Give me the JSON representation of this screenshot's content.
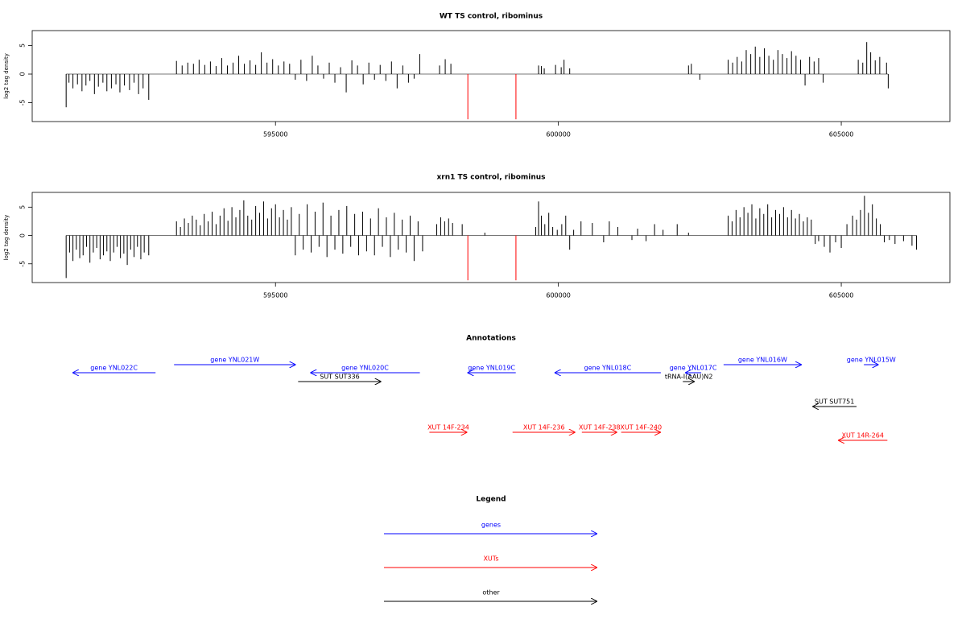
{
  "chart_data": [
    {
      "type": "bar",
      "title": "WT TS control, ribominus",
      "ylabel": "log2 tag density",
      "xlim": [
        590700,
        606920
      ],
      "ylim": [
        -8.3,
        7.6
      ],
      "xticks": [
        595000,
        600000,
        605000
      ],
      "yticks": [
        -5,
        0,
        5
      ],
      "series": [
        {
          "color": "#000000",
          "x": [
            591300,
            591350,
            591420,
            591500,
            591580,
            591650,
            591720,
            591800,
            591870,
            591950,
            592020,
            592100,
            592180,
            592250,
            592330,
            592420,
            592500,
            592580,
            592660,
            592760,
            593250,
            593350,
            593450,
            593550,
            593650,
            593750,
            593850,
            593950,
            594050,
            594150,
            594250,
            594350,
            594450,
            594550,
            594650,
            594750,
            594850,
            594950,
            595050,
            595150,
            595250,
            595350,
            595450,
            595550,
            595650,
            595750,
            595850,
            595950,
            596050,
            596150,
            596250,
            596350,
            596450,
            596550,
            596650,
            596750,
            596850,
            596950,
            597050,
            597150,
            597250,
            597350,
            597450,
            597550,
            597900,
            598000,
            598100,
            599650,
            599700,
            599750,
            599950,
            600050,
            600100,
            600200,
            602300,
            602350,
            602500,
            603000,
            603080,
            603160,
            603240,
            603320,
            603400,
            603480,
            603560,
            603640,
            603720,
            603800,
            603880,
            603960,
            604040,
            604120,
            604200,
            604280,
            604360,
            604440,
            604520,
            604600,
            604680,
            605300,
            605380,
            605450,
            605520,
            605600,
            605680,
            605800,
            605830
          ],
          "values": [
            -5.8,
            -1.5,
            -2.5,
            -1.8,
            -3,
            -2,
            -1.2,
            -3.5,
            -2.2,
            -1.5,
            -3,
            -2.5,
            -1.8,
            -3.2,
            -2,
            -2.8,
            -1.5,
            -3.5,
            -2.5,
            -4.5,
            2.3,
            1.5,
            2,
            1.8,
            2.5,
            1.6,
            2.2,
            1.4,
            2.8,
            1.5,
            2,
            3.2,
            1.8,
            2.4,
            1.6,
            3.8,
            2,
            2.6,
            1.5,
            2.2,
            1.8,
            -1,
            2.5,
            -1.2,
            3.2,
            1.5,
            -0.8,
            2,
            -1.5,
            1.2,
            -3.2,
            2.4,
            1.5,
            -1.8,
            2,
            -1,
            1.6,
            -1.2,
            2.2,
            -2.5,
            1.5,
            -1.5,
            -0.8,
            3.5,
            1.5,
            2.6,
            1.8,
            1.5,
            1.4,
            1,
            1.6,
            1.2,
            2.5,
            1,
            1.5,
            1.8,
            -1,
            2.5,
            2,
            3,
            2.2,
            4.2,
            3.5,
            4.8,
            3,
            4.5,
            3.2,
            2.5,
            4.2,
            3.5,
            2.8,
            4,
            3.2,
            2.5,
            -2,
            3,
            2.2,
            2.8,
            -1.5,
            2.5,
            2,
            5.6,
            3.8,
            2.4,
            3,
            2,
            -2.5
          ]
        },
        {
          "color": "#ff0000",
          "x": [
            598400,
            599250
          ],
          "values": [
            -7.9,
            -7.9
          ]
        }
      ]
    },
    {
      "type": "bar",
      "title": "xrn1 TS control, ribominus",
      "ylabel": "log2 tag density",
      "xlim": [
        590700,
        606920
      ],
      "ylim": [
        -8.3,
        7.6
      ],
      "xticks": [
        595000,
        600000,
        605000
      ],
      "yticks": [
        -5,
        0,
        5
      ],
      "series": [
        {
          "color": "#000000",
          "x": [
            591300,
            591360,
            591420,
            591480,
            591540,
            591600,
            591660,
            591720,
            591780,
            591840,
            591900,
            591960,
            592020,
            592080,
            592140,
            592200,
            592260,
            592320,
            592380,
            592440,
            592500,
            592560,
            592620,
            592680,
            592760,
            593250,
            593320,
            593390,
            593460,
            593530,
            593600,
            593670,
            593740,
            593810,
            593880,
            593950,
            594020,
            594090,
            594160,
            594230,
            594300,
            594370,
            594440,
            594510,
            594580,
            594650,
            594720,
            594790,
            594860,
            594930,
            595000,
            595070,
            595140,
            595210,
            595280,
            595350,
            595420,
            595490,
            595560,
            595630,
            595700,
            595770,
            595840,
            595910,
            595980,
            596050,
            596120,
            596190,
            596260,
            596330,
            596400,
            596470,
            596540,
            596610,
            596680,
            596750,
            596820,
            596890,
            596960,
            597030,
            597100,
            597170,
            597240,
            597310,
            597380,
            597450,
            597520,
            597600,
            597850,
            597920,
            597990,
            598060,
            598130,
            598300,
            598700,
            599600,
            599650,
            599700,
            599760,
            599830,
            599900,
            599980,
            600060,
            600130,
            600200,
            600270,
            600400,
            600600,
            600800,
            600900,
            601050,
            601300,
            601400,
            601550,
            601700,
            601850,
            602100,
            602300,
            603000,
            603070,
            603140,
            603210,
            603280,
            603350,
            603420,
            603490,
            603560,
            603630,
            603700,
            603770,
            603840,
            603910,
            603980,
            604050,
            604120,
            604190,
            604260,
            604330,
            604400,
            604470,
            604540,
            604600,
            604700,
            604800,
            604900,
            605000,
            605100,
            605200,
            605270,
            605340,
            605410,
            605480,
            605550,
            605620,
            605690,
            605760,
            605850,
            605950,
            606100,
            606250,
            606330
          ],
          "values": [
            -7.5,
            -3,
            -4.5,
            -2.5,
            -4,
            -3.5,
            -2,
            -4.8,
            -3,
            -2.2,
            -4.2,
            -3.5,
            -2.8,
            -4.5,
            -3,
            -2,
            -4,
            -3.2,
            -5.2,
            -2.5,
            -3.8,
            -2,
            -4.2,
            -3,
            -3.5,
            2.5,
            1.5,
            3,
            2.2,
            3.5,
            2.8,
            1.8,
            3.8,
            2.5,
            4.2,
            2,
            3.5,
            4.8,
            2.6,
            5,
            3.2,
            4.5,
            6.2,
            3.5,
            2.8,
            5.2,
            4,
            6,
            3,
            4.8,
            5.5,
            3.2,
            4.5,
            2.8,
            5,
            -3.5,
            3.8,
            -2.5,
            5.5,
            -3,
            4.2,
            -2,
            5.8,
            -3.8,
            3.5,
            -2.5,
            4.5,
            -3.2,
            5.2,
            -2,
            3.8,
            -3.5,
            4.2,
            -2.8,
            3,
            -3.5,
            4.8,
            -2,
            3.2,
            -3.8,
            4,
            -2.5,
            2.8,
            -3,
            3.5,
            -4.5,
            2.5,
            -2.8,
            2,
            3.2,
            2.5,
            3,
            2.2,
            2,
            0.5,
            1.5,
            6,
            3.5,
            2,
            4,
            1.5,
            1,
            2,
            3.5,
            -2.5,
            1,
            2.5,
            2.2,
            -1.2,
            2.5,
            1.5,
            -0.8,
            1.2,
            -1,
            2,
            1,
            2,
            0.5,
            3.5,
            2.5,
            4.5,
            3.2,
            5,
            4,
            5.5,
            3,
            4.8,
            3.8,
            5.5,
            3.2,
            4.5,
            3.8,
            5,
            3.2,
            4.5,
            3,
            3.8,
            2.5,
            3.2,
            2.8,
            -1.5,
            -1,
            -2,
            -3,
            -1.2,
            -2.2,
            2,
            3.5,
            2.8,
            4.5,
            7,
            4,
            5.5,
            3,
            2,
            -1.2,
            -0.8,
            -1.5,
            -1,
            -1.8,
            -2.5
          ]
        },
        {
          "color": "#ff0000",
          "x": [
            598400,
            599250
          ],
          "values": [
            -7.9,
            -7.9
          ]
        }
      ]
    },
    {
      "type": "annotation",
      "title": "Annotations",
      "xlim": [
        590700,
        606920
      ],
      "annotations": [
        {
          "label": "gene YNL022C",
          "start": 592880,
          "end": 591412,
          "color": "#0000ff"
        },
        {
          "label": "gene YNL021W",
          "start": 593207,
          "end": 595358,
          "color": "#0000ff"
        },
        {
          "label": "gene YNL020C",
          "start": 597552,
          "end": 595614,
          "color": "#0000ff"
        },
        {
          "label": "gene YNL019C",
          "start": 599247,
          "end": 598392,
          "color": "#0000ff"
        },
        {
          "label": "gene YNL018C",
          "start": 601811,
          "end": 599931,
          "color": "#0000ff"
        },
        {
          "label": "gene YNL017C",
          "start": 602525,
          "end": 602240,
          "color": "#0000ff"
        },
        {
          "label": "tRNA-I(AAU)N2",
          "start": 602200,
          "end": 602410,
          "color": "#000000"
        },
        {
          "label": "gene YNL016W",
          "start": 602920,
          "end": 604300,
          "color": "#0000ff"
        },
        {
          "label": "gene YNL015W",
          "start": 605400,
          "end": 605660,
          "color": "#0000ff"
        },
        {
          "label": "SUT SUT336",
          "start": 595400,
          "end": 596870,
          "color": "#000000"
        },
        {
          "label": "SUT SUT751",
          "start": 605270,
          "end": 604490,
          "color": "#000000"
        },
        {
          "label": "XUT 14F-234",
          "start": 597720,
          "end": 598390,
          "color": "#ff0000"
        },
        {
          "label": "XUT 14F-236",
          "start": 599190,
          "end": 600300,
          "color": "#ff0000"
        },
        {
          "label": "XUT 14F-238",
          "start": 600415,
          "end": 601040,
          "color": "#ff0000"
        },
        {
          "label": "XUT 14F-240",
          "start": 601110,
          "end": 601810,
          "color": "#ff0000"
        },
        {
          "label": "XUT 14R-264",
          "start": 605815,
          "end": 604945,
          "color": "#ff0000"
        }
      ]
    },
    {
      "type": "legend",
      "title": "Legend",
      "entries": [
        {
          "label": "genes",
          "color": "#0000ff"
        },
        {
          "label": "XUTs",
          "color": "#ff0000"
        },
        {
          "label": "other",
          "color": "#000000"
        }
      ]
    }
  ]
}
